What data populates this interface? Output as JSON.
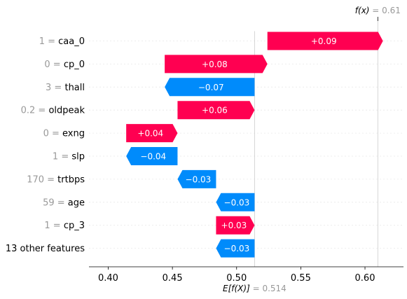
{
  "chart_data": {
    "type": "waterfall",
    "fx": {
      "label": "f(x)",
      "value": "0.61",
      "numeric": 0.61
    },
    "efx": {
      "label": "E[f(X)]",
      "value": "0.514",
      "numeric": 0.514
    },
    "xlim": [
      0.385,
      0.63
    ],
    "ticks": [
      "0.40",
      "0.45",
      "0.50",
      "0.55",
      "0.60"
    ],
    "tick_values": [
      0.4,
      0.45,
      0.5,
      0.55,
      0.6
    ],
    "features": [
      {
        "value": "1",
        "name": "caa_0",
        "contribution": 0.09,
        "label": "+0.09"
      },
      {
        "value": "0",
        "name": "cp_0",
        "contribution": 0.08,
        "label": "+0.08"
      },
      {
        "value": "3",
        "name": "thall",
        "contribution": -0.07,
        "label": "−0.07"
      },
      {
        "value": "0.2",
        "name": "oldpeak",
        "contribution": 0.06,
        "label": "+0.06"
      },
      {
        "value": "0",
        "name": "exng",
        "contribution": 0.04,
        "label": "+0.04"
      },
      {
        "value": "1",
        "name": "slp",
        "contribution": -0.04,
        "label": "−0.04"
      },
      {
        "value": "170",
        "name": "trtbps",
        "contribution": -0.03,
        "label": "−0.03"
      },
      {
        "value": "59",
        "name": "age",
        "contribution": -0.03,
        "label": "−0.03"
      },
      {
        "value": "1",
        "name": "cp_3",
        "contribution": 0.03,
        "label": "+0.03"
      },
      {
        "value": "",
        "name": "13 other features",
        "contribution": -0.03,
        "label": "−0.03"
      }
    ],
    "colors": {
      "positive": "#ff0051",
      "negative": "#008bfb",
      "grid": "#cccccc"
    }
  }
}
